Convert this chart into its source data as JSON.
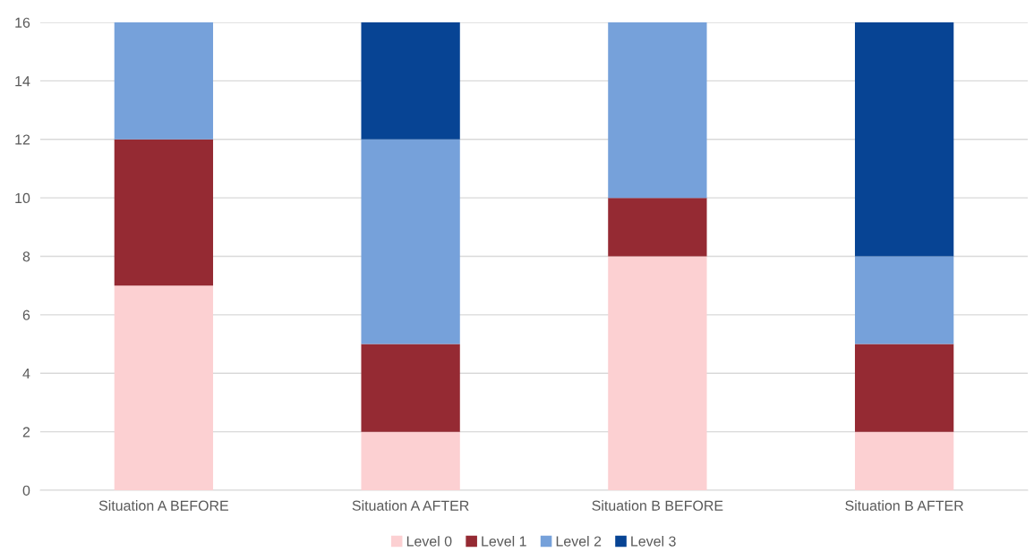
{
  "chart_data": {
    "type": "bar",
    "stacked": true,
    "categories": [
      "Situation A BEFORE",
      "Situation A AFTER",
      "Situation B BEFORE",
      "Situation B AFTER"
    ],
    "series": [
      {
        "name": "Level 0",
        "color": "#fcd0d2",
        "values": [
          7,
          2,
          8,
          2
        ]
      },
      {
        "name": "Level 1",
        "color": "#952a33",
        "values": [
          5,
          3,
          2,
          3
        ]
      },
      {
        "name": "Level 2",
        "color": "#76a1da",
        "values": [
          4,
          7,
          6,
          3
        ]
      },
      {
        "name": "Level 3",
        "color": "#074494",
        "values": [
          0,
          4,
          0,
          8
        ]
      }
    ],
    "ylim": [
      0,
      16
    ],
    "yticks": [
      0,
      2,
      4,
      6,
      8,
      10,
      12,
      14,
      16
    ],
    "grid": "y",
    "legend": "bottom"
  }
}
